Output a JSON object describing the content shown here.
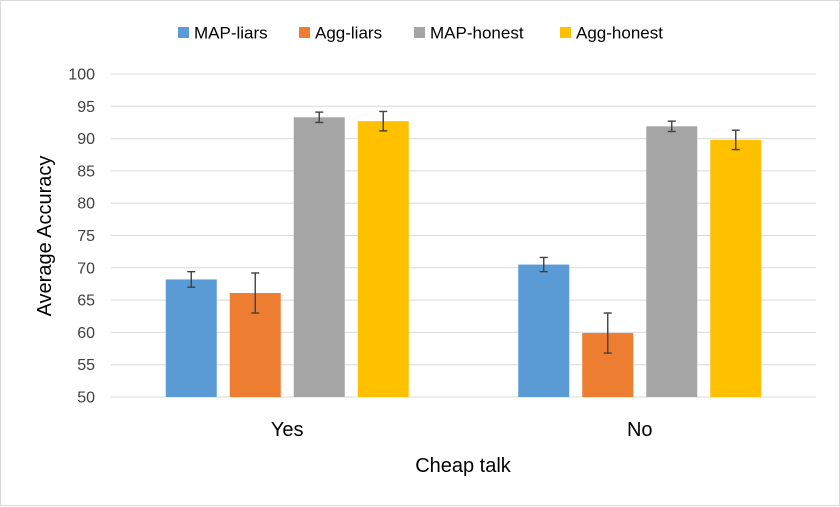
{
  "chart_data": {
    "type": "bar",
    "title": "",
    "xlabel": "Cheap talk",
    "ylabel": "Average Accuracy",
    "ylim": [
      50,
      100
    ],
    "yticks": [
      50,
      55,
      60,
      65,
      70,
      75,
      80,
      85,
      90,
      95,
      100
    ],
    "grid": true,
    "legend_position": "top",
    "categories": [
      "Yes",
      "No"
    ],
    "series": [
      {
        "name": "MAP-liars",
        "color": "#5b9bd5",
        "values": [
          68.2,
          70.5
        ],
        "errors": [
          1.2,
          1.1
        ]
      },
      {
        "name": "Agg-liars",
        "color": "#ed7d31",
        "values": [
          66.1,
          59.9
        ],
        "errors": [
          3.1,
          3.1
        ]
      },
      {
        "name": "MAP-honest",
        "color": "#a5a5a5",
        "values": [
          93.3,
          91.9
        ],
        "errors": [
          0.8,
          0.8
        ]
      },
      {
        "name": "Agg-honest",
        "color": "#ffc000",
        "values": [
          92.7,
          89.8
        ],
        "errors": [
          1.5,
          1.5
        ]
      }
    ]
  }
}
